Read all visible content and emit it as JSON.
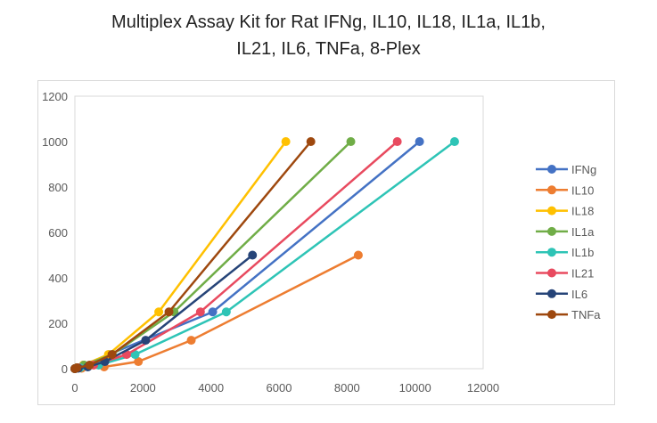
{
  "chart_data": {
    "type": "line",
    "title_lines": [
      "Multiplex Assay Kit for Rat IFNg, IL10, IL18, IL1a, IL1b,",
      "IL21, IL6, TNFa, 8-Plex"
    ],
    "xlabel": "",
    "ylabel": "",
    "xlim": [
      0,
      12000
    ],
    "ylim": [
      0,
      1200
    ],
    "xticks": [
      0,
      2000,
      4000,
      6000,
      8000,
      10000,
      12000
    ],
    "yticks": [
      0,
      200,
      400,
      600,
      800,
      1000,
      1200
    ],
    "legend_position": "right",
    "grid": false,
    "series": [
      {
        "name": "IFNg",
        "color": "#4472c4",
        "x": [
          0,
          60,
          250,
          1000,
          4050,
          10130
        ],
        "y": [
          0,
          3.9,
          15.6,
          62.5,
          250,
          1000
        ]
      },
      {
        "name": "IL10",
        "color": "#ed7d31",
        "x": [
          0,
          200,
          860,
          1865,
          3420,
          8330
        ],
        "y": [
          0,
          1.95,
          7.8,
          31.25,
          125,
          500
        ]
      },
      {
        "name": "IL18",
        "color": "#ffc000",
        "x": [
          0,
          60,
          250,
          985,
          2465,
          6200
        ],
        "y": [
          0,
          3.9,
          15.6,
          62.5,
          250,
          1000
        ]
      },
      {
        "name": "IL1a",
        "color": "#70ad47",
        "x": [
          0,
          60,
          270,
          1100,
          2915,
          8110
        ],
        "y": [
          0,
          3.9,
          15.6,
          62.5,
          250,
          1000
        ]
      },
      {
        "name": "IL1b",
        "color": "#2ec4b6",
        "x": [
          0,
          150,
          700,
          1770,
          4450,
          11160
        ],
        "y": [
          0,
          3.9,
          15.6,
          62.5,
          250,
          1000
        ]
      },
      {
        "name": "IL21",
        "color": "#e84a5f",
        "x": [
          0,
          100,
          550,
          1520,
          3690,
          9475
        ],
        "y": [
          0,
          3.9,
          15.6,
          62.5,
          250,
          1000
        ]
      },
      {
        "name": "IL6",
        "color": "#264478",
        "x": [
          0,
          100,
          380,
          880,
          2080,
          5220
        ],
        "y": [
          0,
          1.95,
          7.8,
          31.25,
          125,
          500
        ]
      },
      {
        "name": "TNFa",
        "color": "#9e480e",
        "x": [
          0,
          60,
          430,
          1090,
          2765,
          6935
        ],
        "y": [
          0,
          3.9,
          15.6,
          62.5,
          250,
          1000
        ]
      }
    ]
  }
}
